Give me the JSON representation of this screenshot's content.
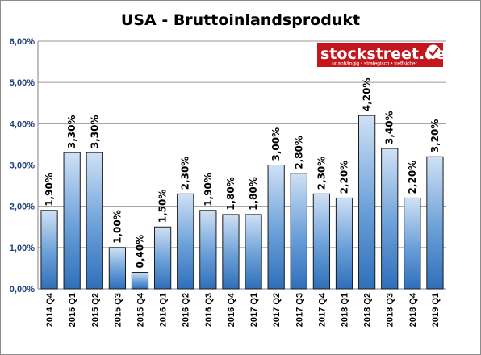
{
  "chart_data": {
    "type": "bar",
    "title": "USA - Bruttoinlandsprodukt",
    "categories": [
      "2014 Q4",
      "2015 Q1",
      "2015 Q2",
      "2015 Q3",
      "2015 Q4",
      "2016 Q1",
      "2016 Q2",
      "2016 Q3",
      "2016 Q4",
      "2017 Q1",
      "2017 Q2",
      "2017 Q3",
      "2017 Q4",
      "2018 Q1",
      "2018 Q2",
      "2018 Q3",
      "2018 Q4",
      "2019 Q1"
    ],
    "values": [
      1.9,
      3.3,
      3.3,
      1.0,
      0.4,
      1.5,
      2.3,
      1.9,
      1.8,
      1.8,
      3.0,
      2.8,
      2.3,
      2.2,
      4.2,
      3.4,
      2.2,
      3.2
    ],
    "data_labels": [
      "1,90%",
      "3,30%",
      "3,30%",
      "1,00%",
      "0,40%",
      "1,50%",
      "2,30%",
      "1,90%",
      "1,80%",
      "1,80%",
      "3,00%",
      "2,80%",
      "2,30%",
      "2,20%",
      "4,20%",
      "3,40%",
      "2,20%",
      "3,20%"
    ],
    "y_ticks": [
      0,
      1,
      2,
      3,
      4,
      5,
      6
    ],
    "y_tick_labels": [
      "0,00%",
      "1,00%",
      "2,00%",
      "3,00%",
      "4,00%",
      "5,00%",
      "6,00%"
    ],
    "ylim": [
      0,
      6
    ],
    "xlabel": "",
    "ylabel": "",
    "grid": true,
    "bar_color": "#2f6fba",
    "bar_highlight": "#cfe1f5"
  },
  "logo": {
    "name": "stockstreet.de",
    "tagline": "unabhängig • strategisch • treffsicher",
    "background": "#c4161c",
    "icon": "checkmark-icon"
  }
}
